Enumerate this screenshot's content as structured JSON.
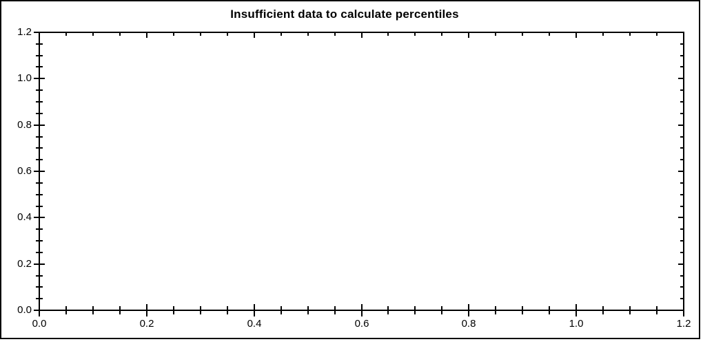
{
  "figure": {
    "title": "Insufficient data to calculate percentiles"
  },
  "colors": {
    "axis": "#000000",
    "text": "#000000",
    "background": "#ffffff"
  },
  "chart_data": {
    "type": "line",
    "title": "Insufficient data to calculate percentiles",
    "series": [],
    "xlabel": "",
    "ylabel": "",
    "xlim": [
      0.0,
      1.2
    ],
    "ylim": [
      0.0,
      1.2
    ],
    "x_major_ticks": [
      0.0,
      0.2,
      0.4,
      0.6,
      0.8,
      1.0,
      1.2
    ],
    "x_tick_labels": [
      "0.0",
      "0.2",
      "0.4",
      "0.6",
      "0.8",
      "1.0",
      "1.2"
    ],
    "y_major_ticks": [
      0.0,
      0.2,
      0.4,
      0.6,
      0.8,
      1.0,
      1.2
    ],
    "y_tick_labels": [
      "0.0",
      "0.2",
      "0.4",
      "0.6",
      "0.8",
      "1.0",
      "1.2"
    ],
    "x_minor_tick_step": 0.05,
    "y_minor_tick_step": 0.05,
    "grid": false,
    "legend_position": "none"
  }
}
